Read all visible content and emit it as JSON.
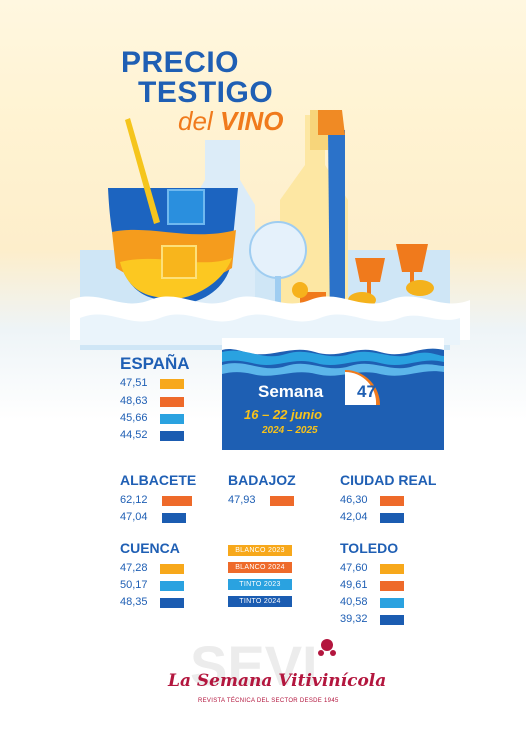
{
  "title": {
    "line1": "PRECIO",
    "line2": "TESTIGO",
    "line3a": "del",
    "line3b": "VINO"
  },
  "week": {
    "label": "Semana",
    "number": "47",
    "dates": "16 – 22 junio",
    "years": "2024 – 2025"
  },
  "legend": [
    {
      "label": "BLANCO 2023",
      "color": "#f7a81b"
    },
    {
      "label": "BLANCO 2024",
      "color": "#ee6a2a"
    },
    {
      "label": "TINTO 2023",
      "color": "#2aa2e0"
    },
    {
      "label": "TINTO 2024",
      "color": "#1b5cb1"
    }
  ],
  "regions": {
    "espana": {
      "name": "ESPAÑA",
      "values": [
        {
          "v": "47,51",
          "type": "BLANCO 2023"
        },
        {
          "v": "48,63",
          "type": "BLANCO 2024"
        },
        {
          "v": "45,66",
          "type": "TINTO 2023"
        },
        {
          "v": "44,52",
          "type": "TINTO 2024"
        }
      ]
    },
    "albacete": {
      "name": "ALBACETE",
      "values": [
        {
          "v": "62,12",
          "type": "BLANCO 2024"
        },
        {
          "v": "47,04",
          "type": "TINTO 2024"
        }
      ]
    },
    "badajoz": {
      "name": "BADAJOZ",
      "values": [
        {
          "v": "47,93",
          "type": "BLANCO 2024"
        }
      ]
    },
    "ciudad_real": {
      "name": "CIUDAD REAL",
      "values": [
        {
          "v": "46,30",
          "type": "BLANCO 2024"
        },
        {
          "v": "42,04",
          "type": "TINTO 2024"
        }
      ]
    },
    "cuenca": {
      "name": "CUENCA",
      "values": [
        {
          "v": "47,28",
          "type": "BLANCO 2023"
        },
        {
          "v": "50,17",
          "type": "TINTO 2023"
        },
        {
          "v": "48,35",
          "type": "TINTO 2024"
        }
      ]
    },
    "toledo": {
      "name": "TOLEDO",
      "values": [
        {
          "v": "47,60",
          "type": "BLANCO 2023"
        },
        {
          "v": "49,61",
          "type": "BLANCO 2024"
        },
        {
          "v": "40,58",
          "type": "TINTO 2023"
        },
        {
          "v": "39,32",
          "type": "TINTO 2024"
        }
      ]
    }
  },
  "brand": {
    "name": "La Semana Vitivinícola",
    "watermark": "SEVI",
    "tagline": "REVISTA TÉCNICA DEL SECTOR DESDE 1945"
  },
  "colors": {
    "blue": "#1f5fb4",
    "orange": "#ee6a2a",
    "yellow": "#f7a81b",
    "cyan": "#2aa2e0",
    "brand": "#b3163e"
  }
}
